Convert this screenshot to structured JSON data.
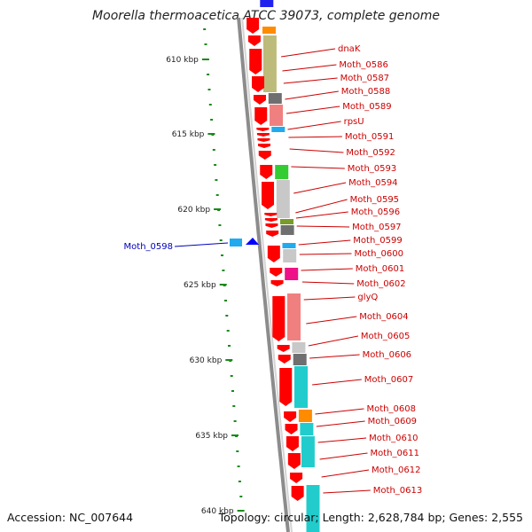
{
  "title": "Moorella thermoacetica ATCC 39073, complete genome",
  "footer": {
    "accession": "Accession: NC_007644",
    "topology": "Topology: circular; Length: 2,628,784 bp; Genes: 2,555"
  },
  "scale_labels": [
    "610 kbp",
    "615 kbp",
    "620 kbp",
    "625 kbp",
    "630 kbp",
    "635 kbp",
    "640 kbp"
  ],
  "colors": {
    "gene": "#ff0000",
    "gene_reverse": "#0000ff",
    "backbone": "#8c8c8c",
    "tick": "#1a8a1a",
    "label_forward": "#cc0000",
    "label_reverse": "#0000bb",
    "cog_olive": "#bdbb7a",
    "cog_salmon": "#f08080",
    "cog_gray": "#c8c8c8",
    "cog_darkgray": "#6f6f6f",
    "cog_green": "#33cc33",
    "cog_olivegreen": "#7a9a2a",
    "cog_cyan": "#22cccc",
    "cog_skyblue": "#22aaee",
    "cog_magenta": "#ee1188",
    "cog_orange": "#ff8c00",
    "cog_blue": "#2222ee"
  },
  "gene_labels": [
    "dnaK",
    "Moth_0586",
    "Moth_0587",
    "Moth_0588",
    "Moth_0589",
    "rpsU",
    "Moth_0591",
    "Moth_0592",
    "Moth_0593",
    "Moth_0594",
    "Moth_0595",
    "Moth_0596",
    "Moth_0597",
    "Moth_0599",
    "Moth_0600",
    "Moth_0601",
    "Moth_0602",
    "glyQ",
    "Moth_0604",
    "Moth_0605",
    "Moth_0606",
    "Moth_0607",
    "Moth_0608",
    "Moth_0609",
    "Moth_0610",
    "Moth_0611",
    "Moth_0612",
    "Moth_0613"
  ],
  "reverse_gene_label": "Moth_0598"
}
